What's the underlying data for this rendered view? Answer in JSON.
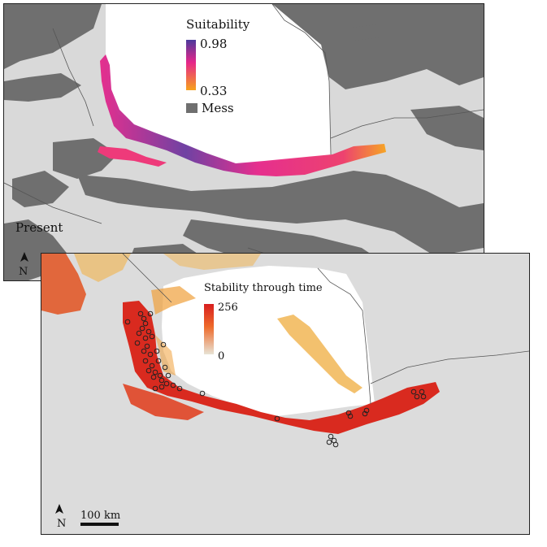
{
  "top_map": {
    "legend_title": "Suitability",
    "legend_high": "0.98",
    "legend_low": "0.33",
    "mess_label": "Mess",
    "period_label": "Present",
    "north_label": "N",
    "colors": {
      "high": "#4b3a9c",
      "mid": "#e6268a",
      "low": "#f7a21b",
      "mess": "#6f6f6f",
      "land": "#d9d9d9",
      "sea": "#ffffff"
    }
  },
  "bottom_map": {
    "legend_title": "Stability through time",
    "legend_high": "256",
    "legend_low": "0",
    "north_label": "N",
    "scale_label": "100 km",
    "occurrence_count": 45,
    "colors": {
      "high": "#d81f1f",
      "low": "#e8e3d4",
      "land": "#dcdcdc",
      "sea": "#ffffff"
    }
  }
}
